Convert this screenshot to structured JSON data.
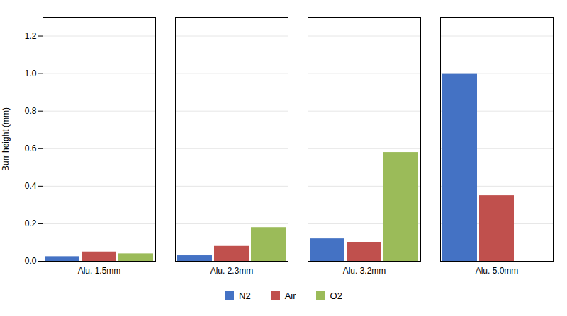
{
  "chart_data": {
    "type": "bar",
    "categories": [
      "Alu. 1.5mm",
      "Alu. 2.3mm",
      "Alu. 3.2mm",
      "Alu. 5.0mm"
    ],
    "series": [
      {
        "name": "N2",
        "color": "#4472C4",
        "values": [
          0.025,
          0.03,
          0.12,
          1.0
        ]
      },
      {
        "name": "Air",
        "color": "#C0504D",
        "values": [
          0.05,
          0.08,
          0.1,
          0.35
        ]
      },
      {
        "name": "O2",
        "color": "#9BBB59",
        "values": [
          0.04,
          0.18,
          0.58,
          0.0
        ]
      }
    ],
    "ylabel": "Burr height (mm)",
    "ylim": [
      0.0,
      1.3
    ],
    "yticks": [
      {
        "value": 0.0,
        "label": "0.0"
      },
      0.2,
      0.4,
      0.6,
      0.8,
      {
        "value": 1.0,
        "label": "1.0"
      },
      1.2
    ],
    "grid": true,
    "legend": "bottom"
  }
}
